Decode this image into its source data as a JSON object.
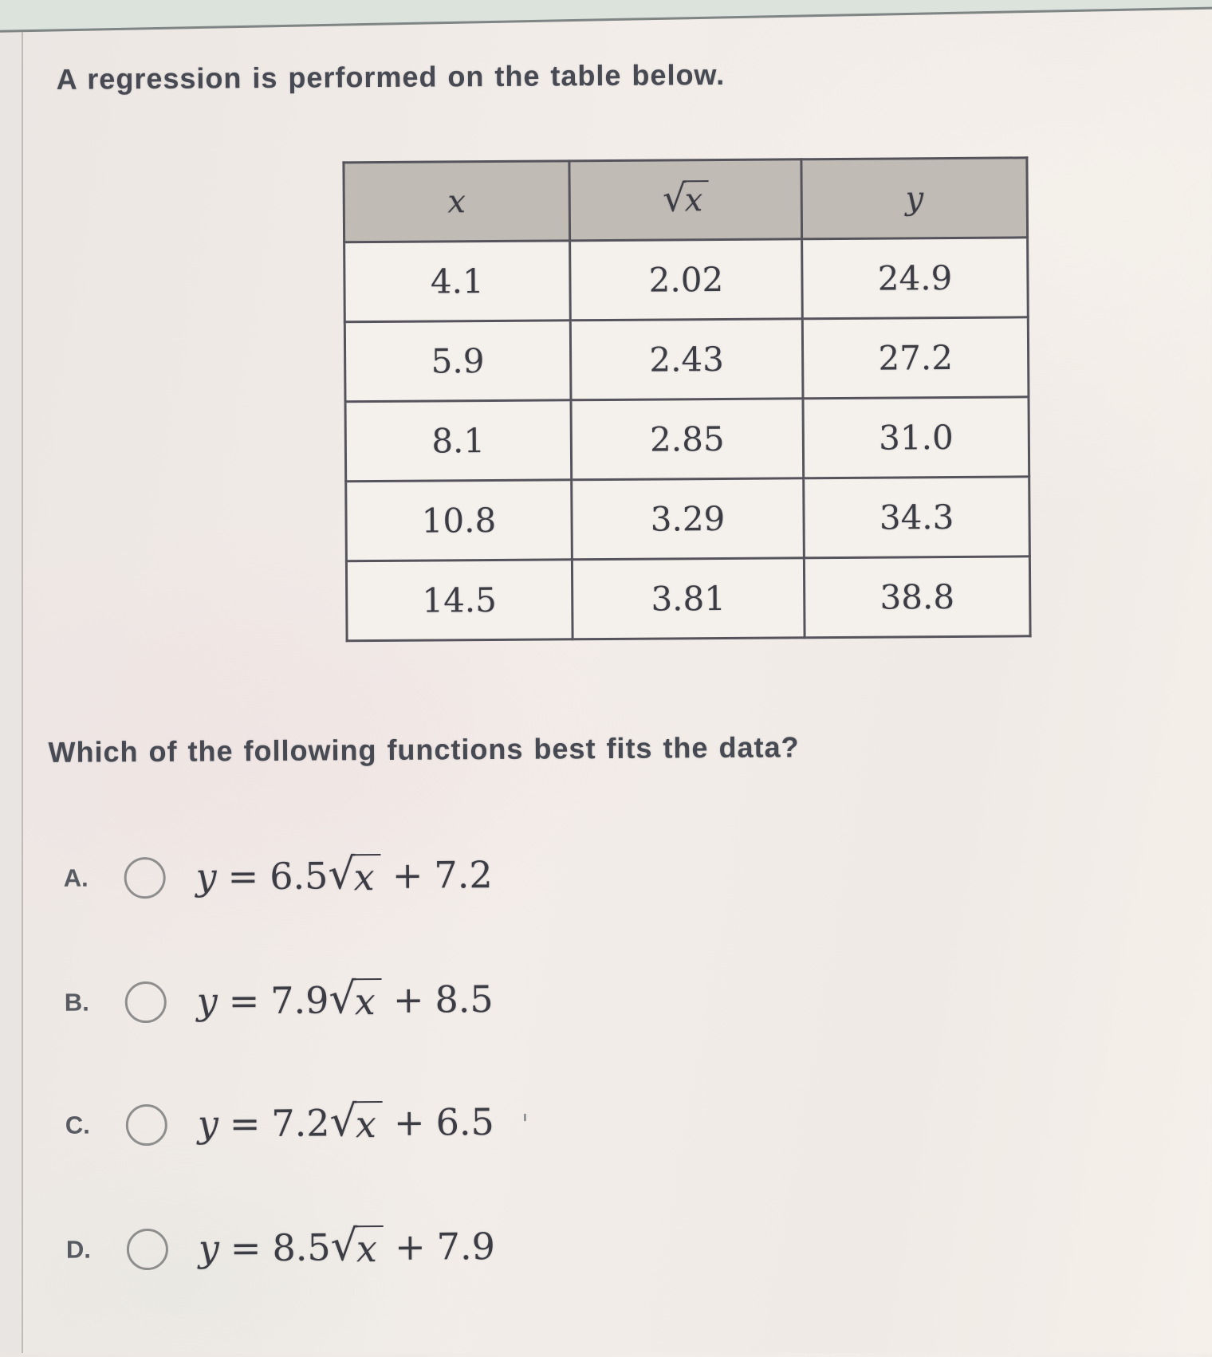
{
  "colors": {
    "page_bg": "#f1ebe7",
    "top_strip_bg": "#dce2dc",
    "top_strip_line": "#7f8584",
    "table_header_bg": "#c0bbb5",
    "table_cell_bg": "#f4f0ec",
    "table_border": "#55535c",
    "text_primary": "#474a52",
    "math_text": "#3c3c44",
    "radio_border": "#8e8e8e"
  },
  "header": {
    "title": "A regression is performed on the table below."
  },
  "table": {
    "headers": {
      "x": "x",
      "sqrt_radicand": "x",
      "y": "y"
    },
    "rows": [
      {
        "x": "4.1",
        "sqrt_x": "2.02",
        "y": "24.9"
      },
      {
        "x": "5.9",
        "sqrt_x": "2.43",
        "y": "27.2"
      },
      {
        "x": "8.1",
        "sqrt_x": "2.85",
        "y": "31.0"
      },
      {
        "x": "10.8",
        "sqrt_x": "3.29",
        "y": "34.3"
      },
      {
        "x": "14.5",
        "sqrt_x": "3.81",
        "y": "38.8"
      }
    ]
  },
  "question": {
    "text": "Which of the following functions best fits the data?"
  },
  "equation": {
    "lhs": "y",
    "equals": "=",
    "plus": "+",
    "sqrt": "√"
  },
  "options": [
    {
      "letter": "A.",
      "coef": "6.5",
      "radicand": "x",
      "constant": "7.2",
      "selected": false
    },
    {
      "letter": "B.",
      "coef": "7.9",
      "radicand": "x",
      "constant": "8.5",
      "selected": false
    },
    {
      "letter": "C.",
      "coef": "7.2",
      "radicand": "x",
      "constant": "6.5",
      "selected": false
    },
    {
      "letter": "D.",
      "coef": "8.5",
      "radicand": "x",
      "constant": "7.9",
      "selected": false
    }
  ],
  "artifacts": {
    "stray_mark": "'"
  }
}
